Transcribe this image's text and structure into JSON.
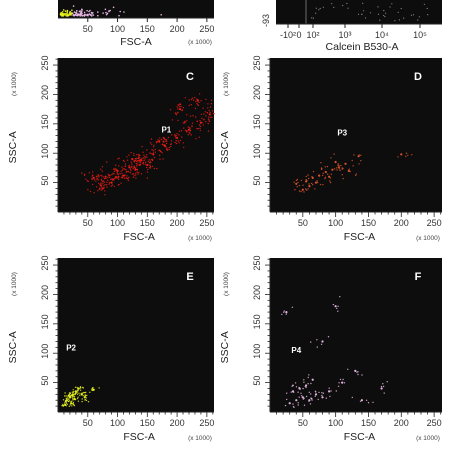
{
  "colors": {
    "background": "#0d0d0d",
    "red": "#e81c14",
    "orange": "#d9542a",
    "yellow": "#e4f020",
    "pink": "#e6b6e2",
    "white": "#ffffff"
  },
  "chart_data": [
    {
      "id": "A",
      "type": "scatter",
      "panel_label": "",
      "xlabel": "FSC-A",
      "x_unit": "(x 1000)",
      "x_ticks": [
        "50",
        "100",
        "150",
        "200",
        "250"
      ],
      "cropped": true,
      "series": [
        {
          "color": "#e4f020",
          "points": [
            [
              18,
              10
            ],
            [
              24,
              14
            ],
            [
              30,
              12
            ],
            [
              36,
              18
            ]
          ]
        },
        {
          "color": "#e6b6e2",
          "points": [
            [
              40,
              20
            ],
            [
              55,
              24
            ],
            [
              70,
              22
            ],
            [
              85,
              26
            ],
            [
              100,
              30
            ]
          ]
        }
      ]
    },
    {
      "id": "B",
      "type": "scatter",
      "panel_label": "",
      "xlabel": "Calcein B530-A",
      "x_scale": "log",
      "x_ticks": [
        "-10²",
        "0",
        "10²",
        "10³",
        "10⁴",
        "10⁵"
      ],
      "y_ticks": [
        "-93"
      ],
      "cropped": true
    },
    {
      "id": "C",
      "type": "scatter",
      "panel_label": "C",
      "gate": "P1",
      "xlabel": "FSC-A",
      "ylabel": "SSC-A",
      "x_unit": "(x 1000)",
      "y_unit": "(x 1000)",
      "x_ticks": [
        "50",
        "100",
        "150",
        "200",
        "250"
      ],
      "y_ticks": [
        "50",
        "100",
        "150",
        "200",
        "250"
      ],
      "xlim": [
        0,
        262
      ],
      "ylim": [
        0,
        262
      ],
      "series": [
        {
          "color": "#e81c14",
          "points": [
            [
              60,
              58
            ],
            [
              80,
              60
            ],
            [
              100,
              70
            ],
            [
              120,
              76
            ],
            [
              140,
              88
            ],
            [
              160,
              98
            ],
            [
              180,
              112
            ],
            [
              200,
              126
            ],
            [
              220,
              140
            ],
            [
              240,
              152
            ],
            [
              255,
              166
            ],
            [
              110,
              62
            ],
            [
              130,
              72
            ],
            [
              150,
              80
            ],
            [
              90,
              50
            ],
            [
              125,
              90
            ],
            [
              170,
              120
            ],
            [
              205,
              175
            ],
            [
              235,
              190
            ],
            [
              75,
              40
            ]
          ]
        }
      ]
    },
    {
      "id": "D",
      "type": "scatter",
      "panel_label": "D",
      "gate": "P3",
      "xlabel": "FSC-A",
      "ylabel": "SSC-A",
      "x_unit": "(x 1000)",
      "y_unit": "(x 1000)",
      "x_ticks": [
        "50",
        "100",
        "150",
        "200",
        "250"
      ],
      "y_ticks": [
        "50",
        "100",
        "150",
        "200",
        "250"
      ],
      "xlim": [
        0,
        262
      ],
      "ylim": [
        0,
        262
      ],
      "series": [
        {
          "color": "#d9542a",
          "points": [
            [
              40,
              48
            ],
            [
              55,
              52
            ],
            [
              65,
              58
            ],
            [
              75,
              62
            ],
            [
              85,
              68
            ],
            [
              95,
              72
            ],
            [
              105,
              76
            ],
            [
              115,
              82
            ],
            [
              60,
              44
            ],
            [
              90,
              60
            ],
            [
              120,
              70
            ],
            [
              135,
              95
            ],
            [
              70,
              50
            ],
            [
              100,
              85
            ],
            [
              50,
              38
            ],
            [
              200,
              98
            ]
          ]
        }
      ]
    },
    {
      "id": "E",
      "type": "scatter",
      "panel_label": "E",
      "gate": "P2",
      "xlabel": "FSC-A",
      "ylabel": "SSC-A",
      "x_unit": "(x 1000)",
      "y_unit": "(x 1000)",
      "x_ticks": [
        "50",
        "100",
        "150",
        "200",
        "250"
      ],
      "y_ticks": [
        "50",
        "100",
        "150",
        "200",
        "250"
      ],
      "xlim": [
        0,
        262
      ],
      "ylim": [
        0,
        262
      ],
      "series": [
        {
          "color": "#e4f020",
          "points": [
            [
              15,
              20
            ],
            [
              20,
              25
            ],
            [
              25,
              30
            ],
            [
              30,
              35
            ],
            [
              18,
              28
            ],
            [
              28,
              22
            ],
            [
              35,
              40
            ],
            [
              22,
              15
            ],
            [
              40,
              30
            ],
            [
              12,
              12
            ],
            [
              45,
              25
            ],
            [
              60,
              38
            ]
          ]
        }
      ]
    },
    {
      "id": "F",
      "type": "scatter",
      "panel_label": "F",
      "gate": "P4",
      "xlabel": "FSC-A",
      "ylabel": "SSC-A",
      "x_unit": "(x 1000)",
      "y_unit": "(x 1000)",
      "x_ticks": [
        "50",
        "100",
        "150",
        "200",
        "250"
      ],
      "y_ticks": [
        "50",
        "100",
        "150",
        "200",
        "250"
      ],
      "xlim": [
        0,
        262
      ],
      "ylim": [
        0,
        262
      ],
      "series": [
        {
          "color": "#e6b6e2",
          "points": [
            [
              30,
              15
            ],
            [
              40,
              20
            ],
            [
              50,
              25
            ],
            [
              60,
              20
            ],
            [
              70,
              30
            ],
            [
              80,
              25
            ],
            [
              45,
              40
            ],
            [
              35,
              35
            ],
            [
              55,
              45
            ],
            [
              90,
              35
            ],
            [
              110,
              50
            ],
            [
              130,
              70
            ],
            [
              65,
              55
            ],
            [
              100,
              180
            ],
            [
              80,
              120
            ],
            [
              25,
              170
            ],
            [
              170,
              40
            ],
            [
              140,
              20
            ]
          ]
        }
      ]
    }
  ]
}
